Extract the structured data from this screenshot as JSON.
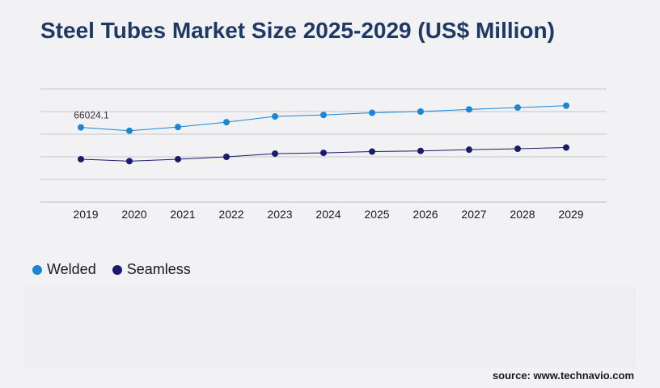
{
  "header": {
    "title": "Steel Tubes Market Size 2025-2029 (US$ Million)"
  },
  "chart_data": {
    "type": "line",
    "title": "Steel Tubes Market Size 2025-2029 (US$ Million)",
    "xlabel": "",
    "ylabel": "",
    "categories": [
      "2019",
      "2020",
      "2021",
      "2022",
      "2023",
      "2024",
      "2025",
      "2026",
      "2027",
      "2028",
      "2029"
    ],
    "ylim": [
      0,
      100000
    ],
    "grid": true,
    "legend_position": "bottom-left",
    "series": [
      {
        "name": "Welded",
        "color": "#1a86d6",
        "values": [
          66024.1,
          63000,
          66300,
          70600,
          75700,
          77000,
          78900,
          80000,
          81900,
          83500,
          85200
        ]
      },
      {
        "name": "Seamless",
        "color": "#1a1a6e",
        "values": [
          37900,
          36200,
          37900,
          40000,
          42800,
          43500,
          44600,
          45200,
          46300,
          47100,
          48200
        ]
      }
    ],
    "annotations": [
      {
        "series": 0,
        "index": 0,
        "text": "66024.1"
      }
    ]
  },
  "source": "source: www.technavio.com"
}
